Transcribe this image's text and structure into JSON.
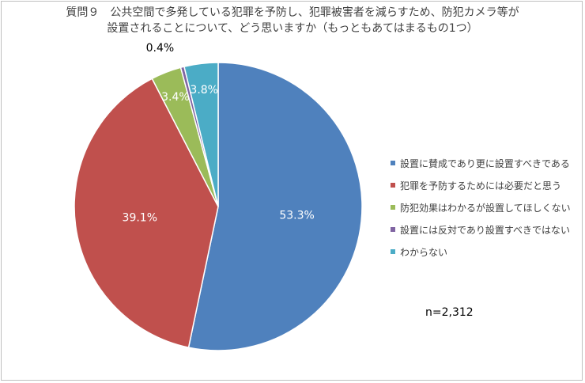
{
  "chart_data": {
    "type": "pie",
    "title_lines": [
      "質問９　公共空間で多発している犯罪を予防し、犯罪被害者を減らすため、防犯カメラ等が",
      "設置されることについて、どう思いますか（もっともあてはまるもの1つ）"
    ],
    "slices": [
      {
        "label": "設置に賛成であり更に設置すべきである",
        "value": 53.3,
        "display": "53.3%",
        "color": "#4F81BD"
      },
      {
        "label": "犯罪を予防するためには必要だと思う",
        "value": 39.1,
        "display": "39.1%",
        "color": "#C0504D"
      },
      {
        "label": "防犯効果はわかるが設置してほしくない",
        "value": 3.4,
        "display": "3.4%",
        "color": "#9BBB59"
      },
      {
        "label": "設置には反対であり設置すべきではない",
        "value": 0.4,
        "display": "0.4%",
        "color": "#8064A2"
      },
      {
        "label": "わからない",
        "value": 3.8,
        "display": "3.8%",
        "color": "#4BACC6"
      }
    ],
    "start": "12 o'clock",
    "direction": "clockwise",
    "legend_position": "right",
    "note": "n=2,312"
  }
}
